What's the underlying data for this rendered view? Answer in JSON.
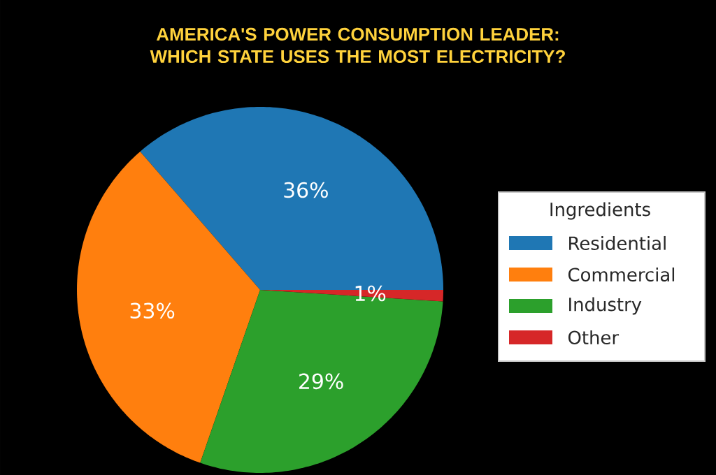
{
  "chart_data": {
    "type": "pie",
    "title": "AMERICA'S POWER CONSUMPTION LEADER: WHICH STATE USES THE MOST ELECTRICITY?",
    "categories": [
      "Residential",
      "Commercial",
      "Industry",
      "Other"
    ],
    "values": [
      36,
      33,
      29,
      1
    ],
    "colors": [
      "#1f77b4",
      "#ff7f0e",
      "#2ca02c",
      "#d62728"
    ],
    "value_labels": [
      "36%",
      "33%",
      "29%",
      "1%"
    ],
    "legend_title": "Ingredients",
    "legend": "right"
  }
}
